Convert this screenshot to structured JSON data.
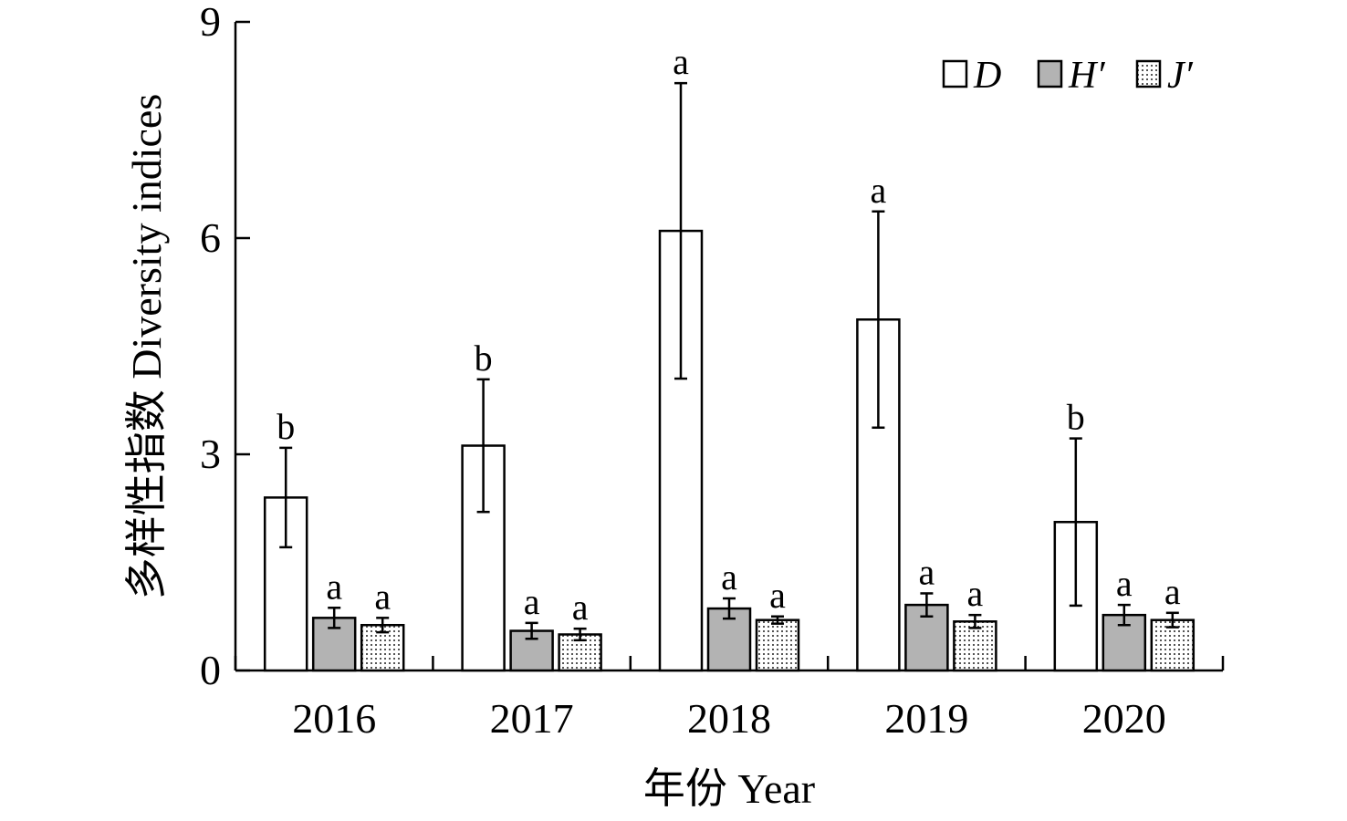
{
  "chart_data": {
    "type": "bar",
    "title": "",
    "xlabel": "年份 Year",
    "ylabel": "多样性指数 Diversity indices",
    "ylim": [
      0,
      9
    ],
    "yticks": [
      0,
      3,
      6,
      9
    ],
    "categories": [
      "2016",
      "2017",
      "2018",
      "2019",
      "2020"
    ],
    "legend_position": "top-right",
    "series": [
      {
        "name": "D",
        "fill": "#ffffff",
        "pattern": "none",
        "values": [
          2.4,
          3.12,
          6.1,
          4.87,
          2.06
        ],
        "errors": [
          0.69,
          0.92,
          2.05,
          1.5,
          1.16
        ],
        "letters": [
          "b",
          "b",
          "a",
          "a",
          "b"
        ]
      },
      {
        "name": "H′",
        "fill": "#b3b3b3",
        "pattern": "none",
        "values": [
          0.73,
          0.55,
          0.86,
          0.91,
          0.77
        ],
        "errors": [
          0.14,
          0.11,
          0.14,
          0.16,
          0.14
        ],
        "letters": [
          "a",
          "a",
          "a",
          "a",
          "a"
        ]
      },
      {
        "name": "J′",
        "fill": "#ffffff",
        "pattern": "dots",
        "values": [
          0.63,
          0.5,
          0.7,
          0.68,
          0.7
        ],
        "errors": [
          0.1,
          0.08,
          0.05,
          0.09,
          0.1
        ],
        "letters": [
          "a",
          "a",
          "a",
          "a",
          "a"
        ]
      }
    ]
  }
}
